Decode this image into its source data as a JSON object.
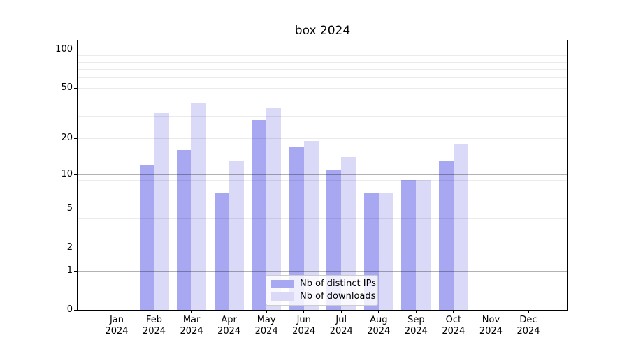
{
  "chart_data": {
    "type": "bar",
    "title": "box 2024",
    "categories": [
      "Jan",
      "Feb",
      "Mar",
      "Apr",
      "May",
      "Jun",
      "Jul",
      "Aug",
      "Sep",
      "Oct",
      "Nov",
      "Dec"
    ],
    "x_year_label": "2024",
    "series": [
      {
        "name": "Nb of distinct IPs",
        "color": "#a8a8f2",
        "values": [
          0,
          12,
          16,
          7,
          28,
          17,
          11,
          7,
          9,
          13,
          0,
          0
        ]
      },
      {
        "name": "Nb of downloads",
        "color": "#dadaf8",
        "values": [
          0,
          32,
          38,
          13,
          35,
          19,
          14,
          7,
          9,
          18,
          0,
          0
        ]
      }
    ],
    "yscale": "log1p",
    "ylim": [
      0,
      118
    ],
    "yticks": [
      0,
      1,
      2,
      5,
      10,
      20,
      50,
      100
    ],
    "gridlines": {
      "major": [
        1,
        10,
        100
      ],
      "minor": [
        2,
        3,
        4,
        5,
        6,
        7,
        8,
        9,
        20,
        30,
        40,
        50,
        60,
        70,
        80,
        90
      ]
    },
    "grid": true,
    "legend_position": "lower center",
    "colors": {
      "major_grid": "#b3b3b3",
      "minor_grid": "#ebebeb",
      "axis": "#000000",
      "text": "#000000",
      "legend_border": "#cccccc"
    }
  }
}
